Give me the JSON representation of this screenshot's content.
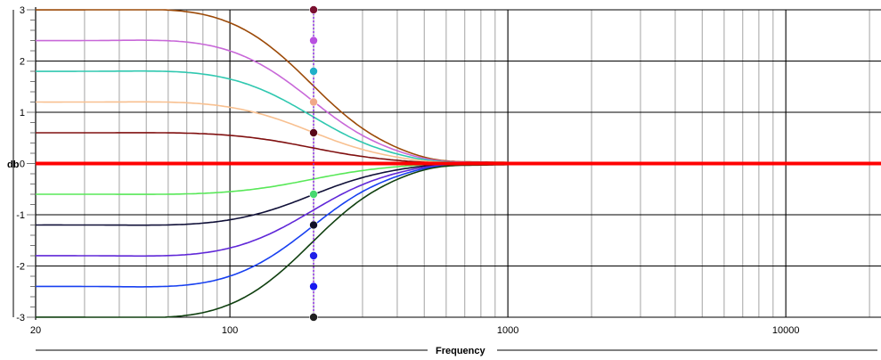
{
  "chart_data": {
    "type": "line",
    "xlabel": "Frequency",
    "ylabel": "db",
    "xscale": "log",
    "xlim": [
      20,
      22000
    ],
    "ylim": [
      -3,
      3
    ],
    "x_tick_labels": [
      "20",
      "100",
      "1000",
      "10000"
    ],
    "x_tick_values": [
      20,
      100,
      1000,
      10000
    ],
    "y_tick_labels": [
      "3",
      "2",
      "1",
      "0",
      "-1",
      "-2",
      "-3"
    ],
    "y_tick_values": [
      3,
      2,
      1,
      0,
      -1,
      -2,
      -3
    ],
    "grid": true,
    "legend": "none",
    "shelf_marker_frequency": 200,
    "reference_line": {
      "y": 0,
      "color": "#ff0000"
    },
    "series": [
      {
        "gain": 3.0,
        "color": "#9c4a08"
      },
      {
        "gain": 2.4,
        "color": "#c868d8"
      },
      {
        "gain": 1.8,
        "color": "#30c8b0"
      },
      {
        "gain": 1.2,
        "color": "#f8c090"
      },
      {
        "gain": 0.6,
        "color": "#801010"
      },
      {
        "gain": -0.6,
        "color": "#58e858"
      },
      {
        "gain": -1.2,
        "color": "#101038"
      },
      {
        "gain": -1.8,
        "color": "#6028d8"
      },
      {
        "gain": -2.4,
        "color": "#1840f0"
      },
      {
        "gain": -3.0,
        "color": "#104010"
      }
    ],
    "markers": [
      {
        "x": 200,
        "y": 3.0,
        "color": "#7a1030"
      },
      {
        "x": 200,
        "y": 2.4,
        "color": "#b850e0"
      },
      {
        "x": 200,
        "y": 1.8,
        "color": "#20b0c8"
      },
      {
        "x": 200,
        "y": 1.2,
        "color": "#f0a888"
      },
      {
        "x": 200,
        "y": 0.6,
        "color": "#580818"
      },
      {
        "x": 200,
        "y": -0.6,
        "color": "#48d870"
      },
      {
        "x": 200,
        "y": -1.2,
        "color": "#101028"
      },
      {
        "x": 200,
        "y": -1.8,
        "color": "#2020e8"
      },
      {
        "x": 200,
        "y": -2.4,
        "color": "#1818f0"
      },
      {
        "x": 200,
        "y": -3.0,
        "color": "#202020"
      }
    ]
  }
}
